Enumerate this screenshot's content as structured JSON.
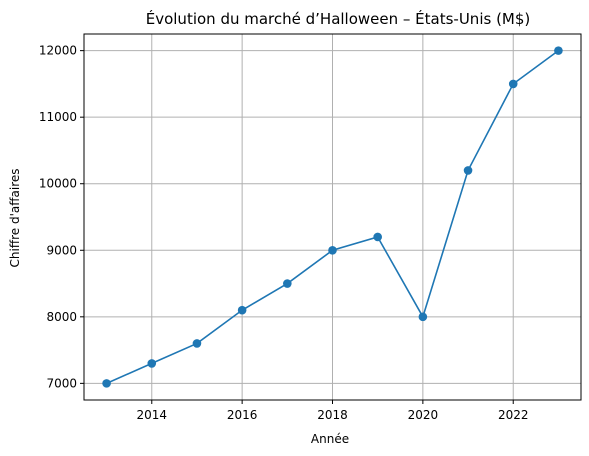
{
  "chart_data": {
    "type": "line",
    "title": "Évolution du marché d’Halloween – États-Unis (M$)",
    "xlabel": "Année",
    "ylabel": "Chiffre d'affaires",
    "x": [
      2013,
      2014,
      2015,
      2016,
      2017,
      2018,
      2019,
      2020,
      2021,
      2022,
      2023
    ],
    "series": [
      {
        "values": [
          7000,
          7300,
          7600,
          8100,
          8500,
          9000,
          9200,
          8000,
          10200,
          11500,
          12000
        ],
        "color": "#1f77b4",
        "marker": "circle"
      }
    ],
    "xlim": [
      2012.5,
      2023.5
    ],
    "ylim": [
      6750,
      12250
    ],
    "xticks": [
      "2014",
      "2016",
      "2018",
      "2020",
      "2022"
    ],
    "yticks": [
      "7000",
      "8000",
      "9000",
      "10000",
      "11000",
      "12000"
    ],
    "grid": true
  }
}
